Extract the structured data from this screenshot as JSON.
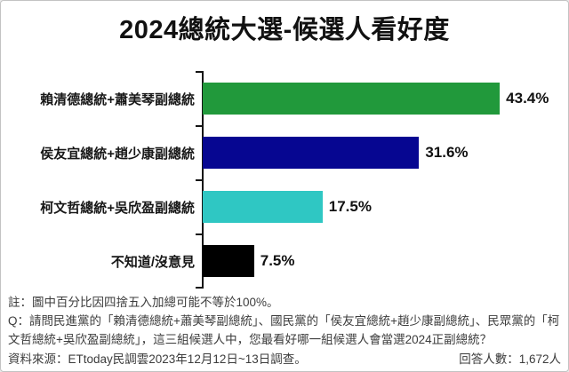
{
  "title": "2024總統大選-候選人看好度",
  "chart_data": {
    "type": "bar",
    "orientation": "horizontal",
    "title": "2024總統大選-候選人看好度",
    "categories": [
      "賴清德總統+蕭美琴副總統",
      "侯友宜總統+趙少康副總統",
      "柯文哲總統+吳欣盈副總統",
      "不知道/沒意見"
    ],
    "values": [
      43.4,
      31.6,
      17.5,
      7.5
    ],
    "value_labels": [
      "43.4%",
      "31.6%",
      "17.5%",
      "7.5%"
    ],
    "bar_colors": [
      "#21993B",
      "#060691",
      "#2FC7C3",
      "#000000"
    ],
    "unit": "%",
    "xlim": [
      0,
      52
    ],
    "grid": false,
    "legend": false,
    "axis_color": "#141414"
  },
  "notes": {
    "rounding": "註：圖中百分比因四捨五入加總可能不等於100%。",
    "question": "Q：請問民進黨的「賴清德總統+蕭美琴副總統」、國民黨的「侯友宜總統+趙少康副總統」、民眾黨的「柯文哲總統+吳欣盈副總統」，這三組候選人中，您最看好哪一組候選人會當選2024正副總統？"
  },
  "footer": {
    "source": "資料來源：ETtoday民調雲2023年12月12日~13日調查。",
    "respondents": "回答人數：1,672人"
  }
}
